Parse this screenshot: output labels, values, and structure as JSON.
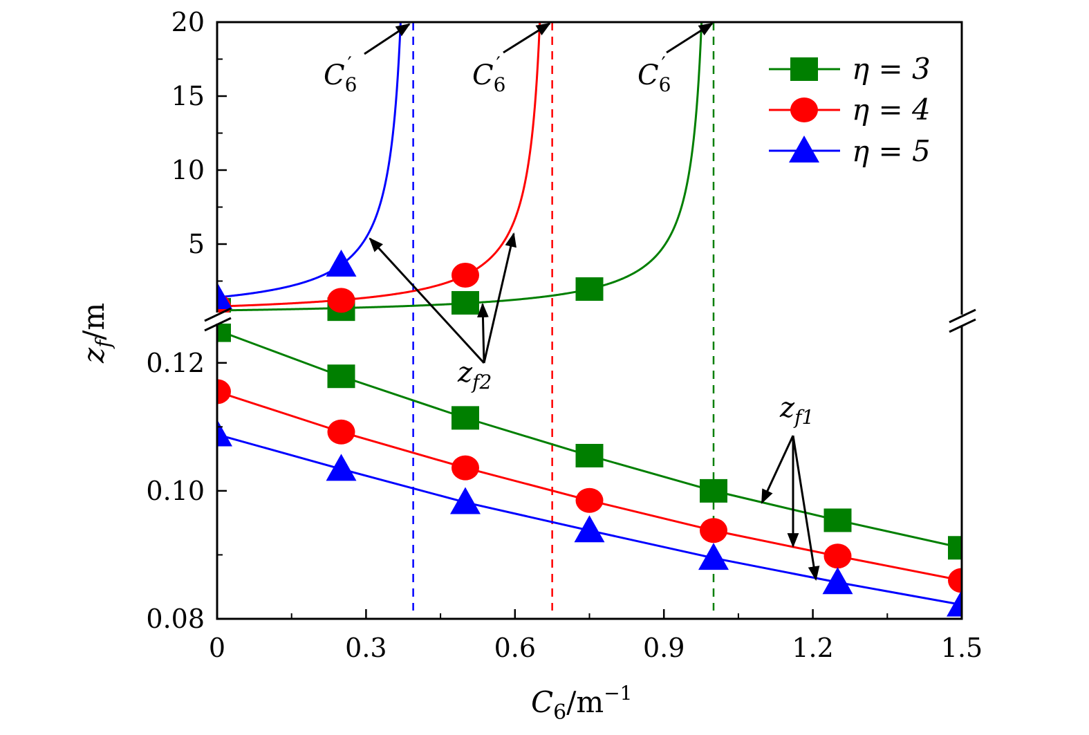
{
  "chart_data": {
    "type": "line",
    "xlabel": {
      "var": "C",
      "sub": "6",
      "unit": "m",
      "exp": "−1"
    },
    "ylabel": {
      "var": "z",
      "sub": "f",
      "unit": "m"
    },
    "xlim": [
      0,
      1.5
    ],
    "x_ticks": [
      "0",
      "0.3",
      "0.6",
      "0.9",
      "1.2",
      "1.5"
    ],
    "y_axis_broken": true,
    "ylim_lower": [
      0.08,
      0.127
    ],
    "ylim_upper": [
      0,
      20
    ],
    "y_ticks_lower": [
      "0.08",
      "0.10",
      "0.12"
    ],
    "y_ticks_upper": [
      "5",
      "10",
      "15",
      "20"
    ],
    "legend_position": "top-right",
    "x": [
      0,
      0.25,
      0.5,
      0.75,
      1.0,
      1.25,
      1.5
    ],
    "series": [
      {
        "name": "η = 3",
        "color": "#007f00",
        "marker": "square",
        "zf1": [
          0.1251,
          0.1179,
          0.1114,
          0.1055,
          0.1,
          0.0954,
          0.0911
        ],
        "zf2": [
          0.56,
          0.6,
          1.03,
          1.96
        ],
        "zf2_x": [
          0,
          0.25,
          0.5,
          0.75
        ],
        "asymptote": 1.0
      },
      {
        "name": "η = 4",
        "color": "#ff0000",
        "marker": "circle",
        "zf1": [
          0.1155,
          0.1092,
          0.1036,
          0.0985,
          0.0938,
          0.0898,
          0.086
        ],
        "zf2": [
          0.8,
          1.2,
          2.9
        ],
        "zf2_x": [
          0,
          0.25,
          0.5
        ],
        "asymptote": 0.675
      },
      {
        "name": "η = 5",
        "color": "#0000ff",
        "marker": "triangle",
        "zf1": [
          0.1088,
          0.1034,
          0.0982,
          0.0938,
          0.0895,
          0.0857,
          0.0822
        ],
        "zf2": [
          1.4,
          3.6
        ],
        "zf2_x": [
          0,
          0.25
        ],
        "asymptote": 0.395
      }
    ],
    "annotations": {
      "c6prime": {
        "var": "C",
        "sub": "6",
        "prime": "′"
      },
      "zf2": {
        "var": "z",
        "sub": "f2"
      },
      "zf1": {
        "var": "z",
        "sub": "f1"
      }
    }
  }
}
